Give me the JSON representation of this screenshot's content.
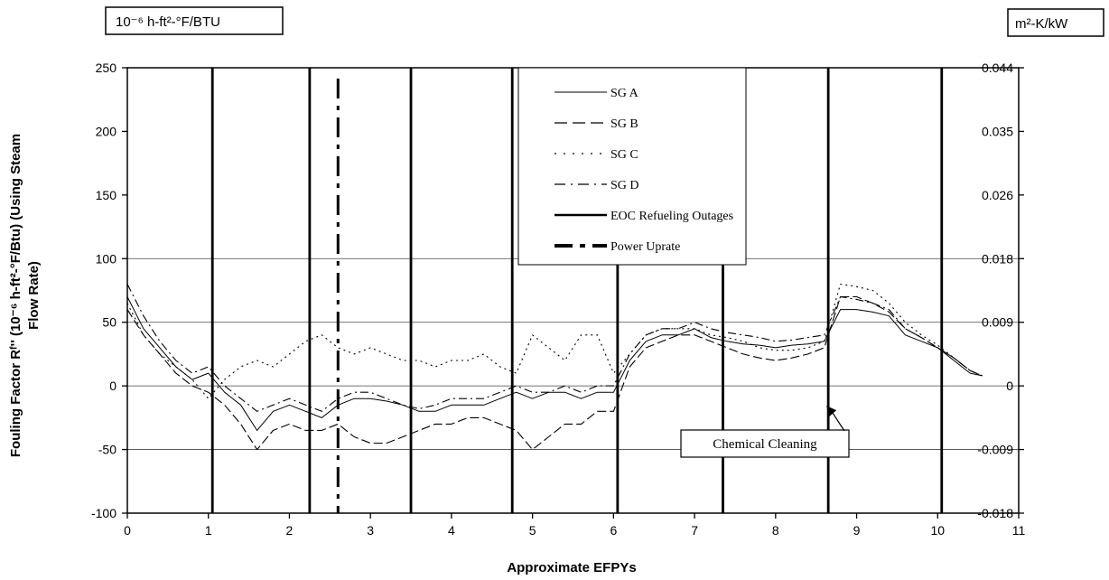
{
  "chart_data": {
    "type": "line",
    "left_unit": "10⁻⁶ h-ft²-°F/BTU",
    "right_unit": "m²-K/kW",
    "xlabel": "Approximate EFPYs",
    "ylabel_line1": "Fouling Factor Rᶠ'' (10⁻⁶ h-ft²-°F/Btu) (Using Steam",
    "ylabel_line2": "Flow Rate)",
    "xlim": [
      0,
      11
    ],
    "ylim": [
      -100,
      250
    ],
    "x_ticks": [
      "0",
      "1",
      "2",
      "3",
      "4",
      "5",
      "6",
      "7",
      "8",
      "9",
      "10",
      "11"
    ],
    "y_ticks": [
      {
        "v": 250,
        "label": "250"
      },
      {
        "v": 200,
        "label": "200"
      },
      {
        "v": 150,
        "label": "150"
      },
      {
        "v": 100,
        "label": "100"
      },
      {
        "v": 50,
        "label": "50"
      },
      {
        "v": 0,
        "label": "0"
      },
      {
        "v": -50,
        "label": "-50"
      },
      {
        "v": -100,
        "label": "-100"
      }
    ],
    "y2_ticks": [
      {
        "v": 250,
        "label": "0.044"
      },
      {
        "v": 200,
        "label": "0.035"
      },
      {
        "v": 150,
        "label": "0.026"
      },
      {
        "v": 100,
        "label": "0.018"
      },
      {
        "v": 50,
        "label": "0.009"
      },
      {
        "v": 0,
        "label": "0"
      },
      {
        "v": -50,
        "label": "-0.009"
      },
      {
        "v": -100,
        "label": "-0.018"
      }
    ],
    "grid_y": [
      100,
      50,
      0,
      -50
    ],
    "outages": [
      1.05,
      2.25,
      3.5,
      4.75,
      6.05,
      7.35,
      8.65,
      10.05
    ],
    "power_uprate": 2.6,
    "legend_position": "top-center",
    "legend": [
      {
        "name": "SG A",
        "style": "solid-thin"
      },
      {
        "name": "SG B",
        "style": "long-dash"
      },
      {
        "name": "SG C",
        "style": "dotted"
      },
      {
        "name": "SG D",
        "style": "dash-dot"
      },
      {
        "name": "EOC Refueling Outages",
        "style": "solid-thick"
      },
      {
        "name": "Power Uprate",
        "style": "thick-dash-dot"
      }
    ],
    "annotation": {
      "text": "Chemical Cleaning",
      "x": 8.65,
      "y": 0
    },
    "series": [
      {
        "name": "SG A",
        "x": [
          0,
          0.2,
          0.4,
          0.6,
          0.8,
          1.0,
          1.2,
          1.4,
          1.6,
          1.8,
          2.0,
          2.2,
          2.4,
          2.6,
          2.8,
          3.0,
          3.2,
          3.4,
          3.6,
          3.8,
          4.0,
          4.2,
          4.4,
          4.6,
          4.8,
          5.0,
          5.2,
          5.4,
          5.6,
          5.8,
          6.0,
          6.2,
          6.4,
          6.6,
          6.8,
          7.0,
          7.2,
          7.4,
          7.6,
          7.8,
          8.0,
          8.2,
          8.4,
          8.6,
          8.8,
          9.0,
          9.2,
          9.4,
          9.6,
          9.8,
          10.0,
          10.2,
          10.4,
          10.55
        ],
        "y": [
          70,
          45,
          30,
          15,
          5,
          10,
          -5,
          -15,
          -35,
          -20,
          -15,
          -20,
          -25,
          -15,
          -10,
          -10,
          -12,
          -15,
          -20,
          -20,
          -15,
          -15,
          -15,
          -10,
          -5,
          -10,
          -5,
          -5,
          -10,
          -5,
          -5,
          20,
          35,
          40,
          40,
          45,
          38,
          35,
          33,
          32,
          30,
          32,
          33,
          35,
          60,
          60,
          58,
          55,
          40,
          35,
          30,
          20,
          10,
          8
        ]
      },
      {
        "name": "SG B",
        "x": [
          0,
          0.2,
          0.4,
          0.6,
          0.8,
          1.0,
          1.2,
          1.4,
          1.6,
          1.8,
          2.0,
          2.2,
          2.4,
          2.6,
          2.8,
          3.0,
          3.2,
          3.4,
          3.6,
          3.8,
          4.0,
          4.2,
          4.4,
          4.6,
          4.8,
          5.0,
          5.2,
          5.4,
          5.6,
          5.8,
          6.0,
          6.2,
          6.4,
          6.6,
          6.8,
          7.0,
          7.2,
          7.4,
          7.6,
          7.8,
          8.0,
          8.2,
          8.4,
          8.6,
          8.8,
          9.0,
          9.2,
          9.4,
          9.6,
          9.8,
          10.0,
          10.2,
          10.4,
          10.55
        ],
        "y": [
          60,
          40,
          25,
          10,
          0,
          -5,
          -15,
          -30,
          -50,
          -35,
          -30,
          -35,
          -35,
          -30,
          -40,
          -45,
          -45,
          -40,
          -35,
          -30,
          -30,
          -25,
          -25,
          -30,
          -35,
          -50,
          -40,
          -30,
          -30,
          -20,
          -20,
          15,
          30,
          35,
          40,
          40,
          35,
          30,
          25,
          22,
          20,
          22,
          25,
          30,
          70,
          70,
          65,
          58,
          45,
          38,
          30,
          22,
          12,
          8
        ]
      },
      {
        "name": "SG C",
        "x": [
          0,
          0.2,
          0.4,
          0.6,
          0.8,
          1.0,
          1.2,
          1.4,
          1.6,
          1.8,
          2.0,
          2.2,
          2.4,
          2.6,
          2.8,
          3.0,
          3.2,
          3.4,
          3.6,
          3.8,
          4.0,
          4.2,
          4.4,
          4.6,
          4.8,
          5.0,
          5.2,
          5.4,
          5.6,
          5.8,
          6.0,
          6.2,
          6.4,
          6.6,
          6.8,
          7.0,
          7.2,
          7.4,
          7.6,
          7.8,
          8.0,
          8.2,
          8.4,
          8.6,
          8.8,
          9.0,
          9.2,
          9.4,
          9.6,
          9.8,
          10.0,
          10.2,
          10.4,
          10.55
        ],
        "y": [
          65,
          40,
          25,
          15,
          5,
          -10,
          5,
          15,
          20,
          15,
          25,
          35,
          40,
          30,
          25,
          30,
          25,
          20,
          20,
          15,
          20,
          20,
          25,
          15,
          10,
          40,
          30,
          20,
          40,
          40,
          10,
          25,
          40,
          45,
          45,
          45,
          40,
          38,
          35,
          30,
          28,
          28,
          30,
          35,
          80,
          78,
          75,
          65,
          50,
          40,
          32,
          22,
          12,
          8
        ]
      },
      {
        "name": "SG D",
        "x": [
          0,
          0.2,
          0.4,
          0.6,
          0.8,
          1.0,
          1.2,
          1.4,
          1.6,
          1.8,
          2.0,
          2.2,
          2.4,
          2.6,
          2.8,
          3.0,
          3.2,
          3.4,
          3.6,
          3.8,
          4.0,
          4.2,
          4.4,
          4.6,
          4.8,
          5.0,
          5.2,
          5.4,
          5.6,
          5.8,
          6.0,
          6.2,
          6.4,
          6.6,
          6.8,
          7.0,
          7.2,
          7.4,
          7.6,
          7.8,
          8.0,
          8.2,
          8.4,
          8.6,
          8.8,
          9.0,
          9.2,
          9.4,
          9.6,
          9.8,
          10.0,
          10.2,
          10.4,
          10.55
        ],
        "y": [
          80,
          55,
          35,
          20,
          10,
          15,
          0,
          -10,
          -20,
          -15,
          -10,
          -15,
          -20,
          -10,
          -5,
          -5,
          -10,
          -15,
          -18,
          -15,
          -10,
          -10,
          -10,
          -5,
          0,
          -5,
          -5,
          0,
          -5,
          0,
          0,
          25,
          40,
          45,
          45,
          50,
          45,
          42,
          40,
          38,
          35,
          36,
          38,
          40,
          70,
          68,
          65,
          60,
          45,
          38,
          30,
          22,
          12,
          8
        ]
      }
    ]
  }
}
